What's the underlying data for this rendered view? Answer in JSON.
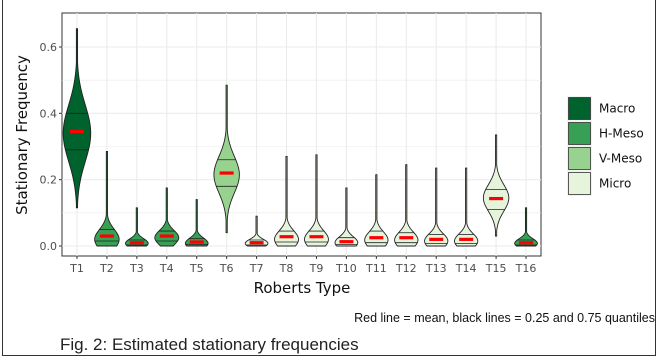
{
  "chart_data": {
    "type": "violin",
    "xlabel": "Roberts Type",
    "ylabel": "Stationary Frequency",
    "ylim": [
      -0.02,
      0.68
    ],
    "y_ticks": [
      0.0,
      0.2,
      0.4,
      0.6
    ],
    "y_tick_labels": [
      "0.0",
      "0.2",
      "0.4",
      "0.6"
    ],
    "grid": true,
    "legend_position": "right",
    "legend": [
      {
        "name": "Macro",
        "color": "#00622d"
      },
      {
        "name": "H-Meso",
        "color": "#38a055"
      },
      {
        "name": "V-Meso",
        "color": "#97d28f"
      },
      {
        "name": "Micro",
        "color": "#e6f4dc"
      }
    ],
    "categories": [
      "T1",
      "T2",
      "T3",
      "T4",
      "T5",
      "T6",
      "T7",
      "T8",
      "T9",
      "T10",
      "T11",
      "T12",
      "T13",
      "T14",
      "T15",
      "T16"
    ],
    "violins": [
      {
        "label": "T1",
        "group": "Macro",
        "min": 0.115,
        "max": 0.655,
        "q1": 0.29,
        "q3": 0.4,
        "mean": 0.345,
        "mode": 0.34,
        "spread": 0.085,
        "peak_width": 0.92
      },
      {
        "label": "T2",
        "group": "H-Meso",
        "min": 0.0,
        "max": 0.285,
        "q1": 0.015,
        "q3": 0.05,
        "mean": 0.03,
        "mode": 0.02,
        "spread": 0.03,
        "peak_width": 0.82
      },
      {
        "label": "T3",
        "group": "H-Meso",
        "min": 0.0,
        "max": 0.115,
        "q1": 0.003,
        "q3": 0.018,
        "mean": 0.01,
        "mode": 0.008,
        "spread": 0.014,
        "peak_width": 0.76
      },
      {
        "label": "T4",
        "group": "H-Meso",
        "min": 0.0,
        "max": 0.175,
        "q1": 0.015,
        "q3": 0.045,
        "mean": 0.03,
        "mode": 0.025,
        "spread": 0.022,
        "peak_width": 0.8
      },
      {
        "label": "T5",
        "group": "H-Meso",
        "min": 0.0,
        "max": 0.14,
        "q1": 0.005,
        "q3": 0.022,
        "mean": 0.012,
        "mode": 0.008,
        "spread": 0.016,
        "peak_width": 0.76
      },
      {
        "label": "T6",
        "group": "V-Meso",
        "min": 0.04,
        "max": 0.485,
        "q1": 0.18,
        "q3": 0.26,
        "mean": 0.22,
        "mode": 0.215,
        "spread": 0.055,
        "peak_width": 0.85
      },
      {
        "label": "T7",
        "group": "Micro",
        "min": 0.0,
        "max": 0.09,
        "q1": 0.003,
        "q3": 0.018,
        "mean": 0.01,
        "mode": 0.008,
        "spread": 0.012,
        "peak_width": 0.76
      },
      {
        "label": "T8",
        "group": "Micro",
        "min": 0.0,
        "max": 0.27,
        "q1": 0.012,
        "q3": 0.045,
        "mean": 0.028,
        "mode": 0.02,
        "spread": 0.026,
        "peak_width": 0.8
      },
      {
        "label": "T9",
        "group": "Micro",
        "min": 0.0,
        "max": 0.275,
        "q1": 0.012,
        "q3": 0.045,
        "mean": 0.028,
        "mode": 0.02,
        "spread": 0.026,
        "peak_width": 0.8
      },
      {
        "label": "T10",
        "group": "Micro",
        "min": 0.0,
        "max": 0.175,
        "q1": 0.005,
        "q3": 0.025,
        "mean": 0.013,
        "mode": 0.01,
        "spread": 0.018,
        "peak_width": 0.76
      },
      {
        "label": "T11",
        "group": "Micro",
        "min": 0.0,
        "max": 0.215,
        "q1": 0.01,
        "q3": 0.045,
        "mean": 0.025,
        "mode": 0.018,
        "spread": 0.025,
        "peak_width": 0.78
      },
      {
        "label": "T12",
        "group": "Micro",
        "min": 0.0,
        "max": 0.245,
        "q1": 0.01,
        "q3": 0.04,
        "mean": 0.025,
        "mode": 0.018,
        "spread": 0.024,
        "peak_width": 0.78
      },
      {
        "label": "T13",
        "group": "Micro",
        "min": 0.0,
        "max": 0.235,
        "q1": 0.008,
        "q3": 0.035,
        "mean": 0.02,
        "mode": 0.015,
        "spread": 0.022,
        "peak_width": 0.78
      },
      {
        "label": "T14",
        "group": "Micro",
        "min": 0.0,
        "max": 0.235,
        "q1": 0.008,
        "q3": 0.035,
        "mean": 0.02,
        "mode": 0.015,
        "spread": 0.022,
        "peak_width": 0.78
      },
      {
        "label": "T15",
        "group": "Micro",
        "min": 0.03,
        "max": 0.335,
        "q1": 0.11,
        "q3": 0.17,
        "mean": 0.143,
        "mode": 0.145,
        "spread": 0.04,
        "peak_width": 0.85
      },
      {
        "label": "T16",
        "group": "H-Meso",
        "min": 0.0,
        "max": 0.115,
        "q1": 0.003,
        "q3": 0.018,
        "mean": 0.01,
        "mode": 0.008,
        "spread": 0.014,
        "peak_width": 0.76
      }
    ]
  },
  "note": "Red line = mean, black lines = 0.25 and 0.75 quantiles",
  "caption": "Fig. 2: Estimated stationary frequencies"
}
